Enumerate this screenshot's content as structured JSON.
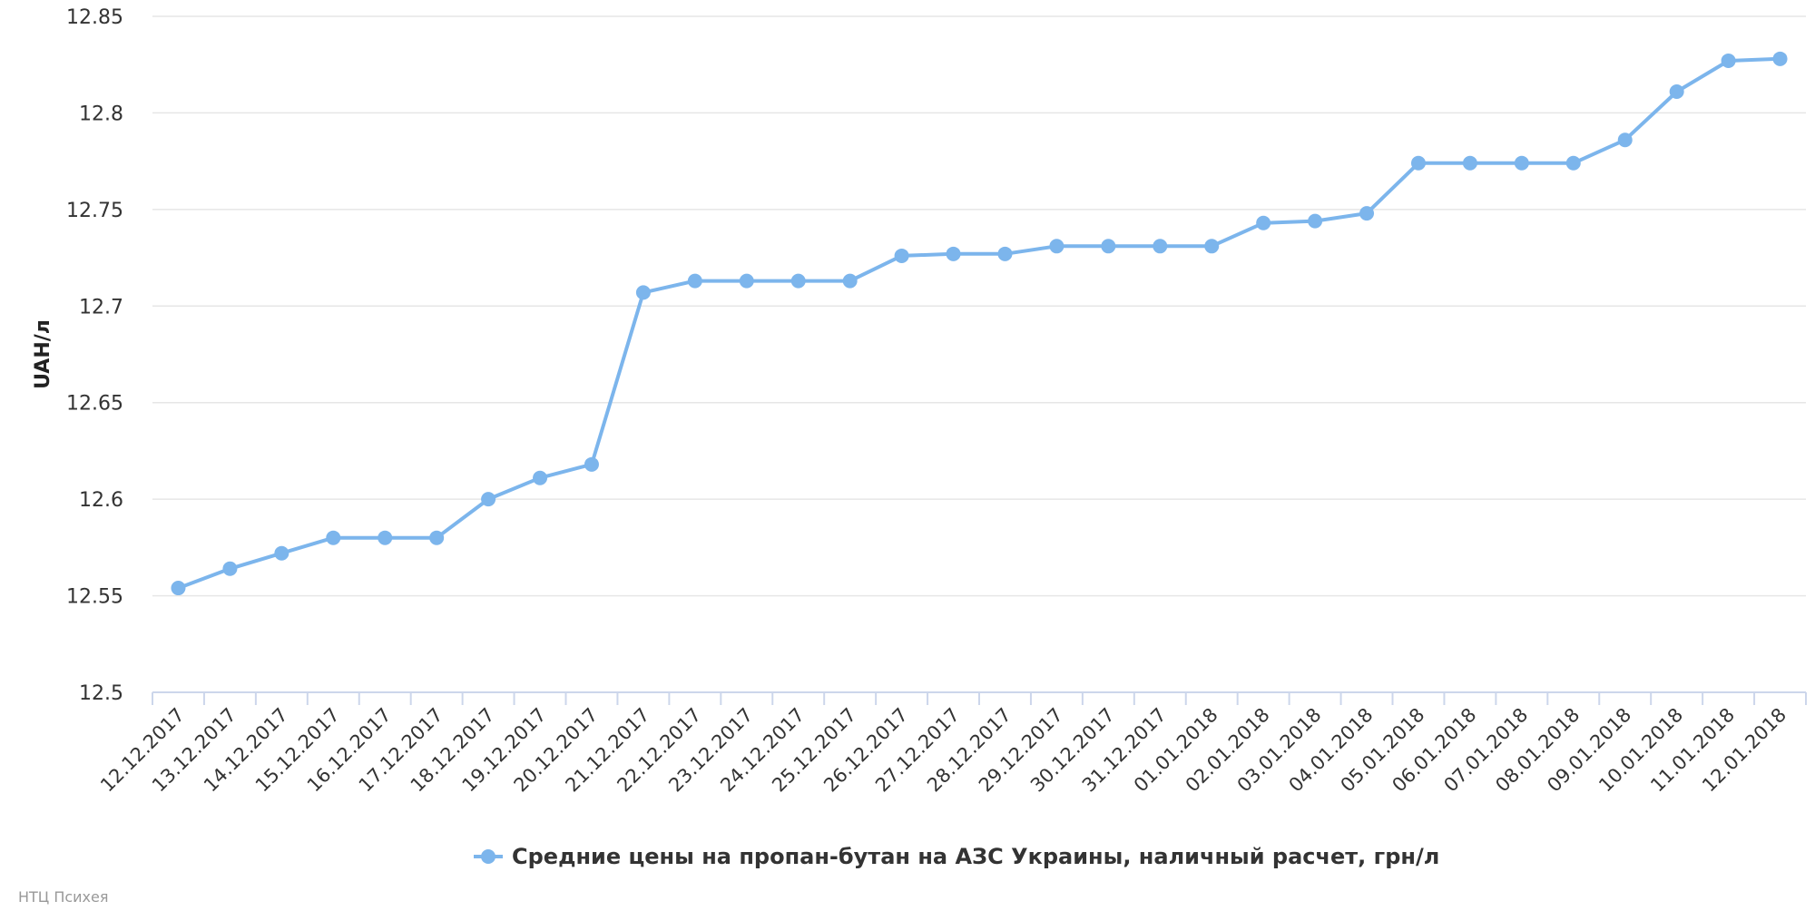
{
  "colors": {
    "series": "#7cb5ec",
    "grid": "#e6e6e6",
    "axis": "#ccd6eb",
    "text": "#333333"
  },
  "credits": "НТЦ Психея",
  "chart_data": {
    "type": "line",
    "title": "",
    "xlabel": "",
    "ylabel": "UAH/л",
    "ylim": [
      12.5,
      12.85
    ],
    "yticks": [
      "12.5",
      "12.55",
      "12.6",
      "12.65",
      "12.7",
      "12.75",
      "12.8",
      "12.85"
    ],
    "grid": true,
    "legend_position": "bottom-center",
    "categories": [
      "12.12.2017",
      "13.12.2017",
      "14.12.2017",
      "15.12.2017",
      "16.12.2017",
      "17.12.2017",
      "18.12.2017",
      "19.12.2017",
      "20.12.2017",
      "21.12.2017",
      "22.12.2017",
      "23.12.2017",
      "24.12.2017",
      "25.12.2017",
      "26.12.2017",
      "27.12.2017",
      "28.12.2017",
      "29.12.2017",
      "30.12.2017",
      "31.12.2017",
      "01.01.2018",
      "02.01.2018",
      "03.01.2018",
      "04.01.2018",
      "05.01.2018",
      "06.01.2018",
      "07.01.2018",
      "08.01.2018",
      "09.01.2018",
      "10.01.2018",
      "11.01.2018",
      "12.01.2018"
    ],
    "series": [
      {
        "name": "Средние цены на пропан-бутан на АЗС Украины, наличный расчет, грн/л",
        "values": [
          12.554,
          12.564,
          12.572,
          12.58,
          12.58,
          12.58,
          12.6,
          12.611,
          12.618,
          12.707,
          12.713,
          12.713,
          12.713,
          12.713,
          12.726,
          12.727,
          12.727,
          12.731,
          12.731,
          12.731,
          12.731,
          12.743,
          12.744,
          12.748,
          12.774,
          12.774,
          12.774,
          12.774,
          12.786,
          12.811,
          12.827,
          12.828
        ]
      }
    ]
  }
}
